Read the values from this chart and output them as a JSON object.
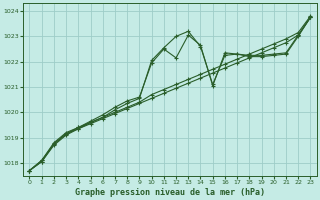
{
  "title": "Graphe pression niveau de la mer (hPa)",
  "bg_color": "#c5ebe5",
  "grid_color": "#9ecdc8",
  "line_color": "#2a5e2a",
  "xlim": [
    -0.5,
    23.5
  ],
  "ylim": [
    1017.5,
    1024.3
  ],
  "yticks": [
    1018,
    1019,
    1020,
    1021,
    1022,
    1023,
    1024
  ],
  "xticks": [
    0,
    1,
    2,
    3,
    4,
    5,
    6,
    7,
    8,
    9,
    10,
    11,
    12,
    13,
    14,
    15,
    16,
    17,
    18,
    19,
    20,
    21,
    22,
    23
  ],
  "series": [
    [
      1017.7,
      1018.05,
      1018.7,
      1019.1,
      1019.35,
      1019.55,
      1019.75,
      1019.95,
      1020.15,
      1020.35,
      1020.55,
      1020.75,
      1020.95,
      1021.15,
      1021.35,
      1021.55,
      1021.75,
      1021.95,
      1022.15,
      1022.35,
      1022.55,
      1022.75,
      1023.05,
      1023.75
    ],
    [
      1017.7,
      1018.1,
      1018.75,
      1019.15,
      1019.4,
      1019.6,
      1019.8,
      1020.0,
      1020.2,
      1020.4,
      1020.7,
      1020.9,
      1021.1,
      1021.3,
      1021.5,
      1021.7,
      1021.9,
      1022.1,
      1022.3,
      1022.5,
      1022.7,
      1022.9,
      1023.15,
      1023.8
    ],
    [
      1017.7,
      1018.1,
      1018.8,
      1019.2,
      1019.4,
      1019.65,
      1019.9,
      1020.2,
      1020.45,
      1020.6,
      1021.95,
      1022.5,
      1022.15,
      1023.05,
      1022.65,
      1021.05,
      1022.35,
      1022.3,
      1022.25,
      1022.25,
      1022.3,
      1022.35,
      1023.05,
      1023.75
    ],
    [
      1017.7,
      1018.05,
      1018.75,
      1019.15,
      1019.35,
      1019.6,
      1019.8,
      1020.1,
      1020.35,
      1020.55,
      1022.05,
      1022.55,
      1023.0,
      1023.2,
      1022.6,
      1021.1,
      1022.25,
      1022.3,
      1022.2,
      1022.2,
      1022.25,
      1022.3,
      1023.0,
      1023.75
    ]
  ]
}
